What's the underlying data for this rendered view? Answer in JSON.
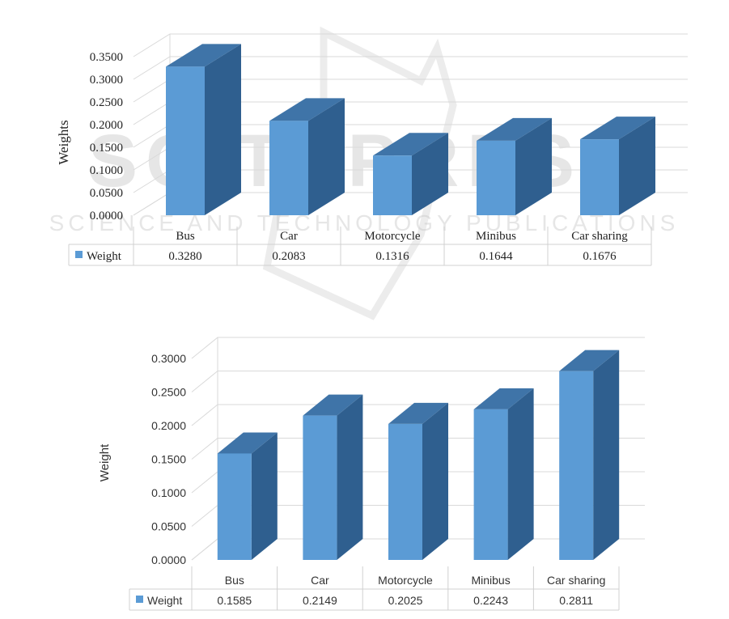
{
  "watermark": {
    "line1": "SCITEPRESS",
    "line2": "SCIENCE AND TECHNOLOGY PUBLICATIONS"
  },
  "chart_data": [
    {
      "type": "bar",
      "style": "3d-column",
      "ylabel": "Weights",
      "ylim": [
        0,
        0.35
      ],
      "yticks": [
        "0.0000",
        "0.0500",
        "0.1000",
        "0.1500",
        "0.2000",
        "0.2500",
        "0.3000",
        "0.3500"
      ],
      "categories": [
        "Bus",
        "Car",
        "Motorcycle",
        "Minibus",
        "Car sharing"
      ],
      "series": [
        {
          "name": "Weight",
          "values": [
            0.328,
            0.2083,
            0.1316,
            0.1644,
            0.1676
          ],
          "labels": [
            "0.3280",
            "0.2083",
            "0.1316",
            "0.1644",
            "0.1676"
          ]
        }
      ],
      "data_table": true,
      "grid": true,
      "colors": {
        "front": "#5b9bd5",
        "side": "#2f5f8f",
        "top": "#3f74a8"
      }
    },
    {
      "type": "bar",
      "style": "3d-column",
      "ylabel": "Weight",
      "ylim": [
        0,
        0.3
      ],
      "yticks": [
        "0.0000",
        "0.0500",
        "0.1000",
        "0.1500",
        "0.2000",
        "0.2500",
        "0.3000"
      ],
      "categories": [
        "Bus",
        "Car",
        "Motorcycle",
        "Minibus",
        "Car sharing"
      ],
      "series": [
        {
          "name": "Weight",
          "values": [
            0.1585,
            0.2149,
            0.2025,
            0.2243,
            0.2811
          ],
          "labels": [
            "0.1585",
            "0.2149",
            "0.2025",
            "0.2243",
            "0.2811"
          ]
        }
      ],
      "data_table": true,
      "grid": true,
      "colors": {
        "front": "#5b9bd5",
        "side": "#2f5f8f",
        "top": "#3f74a8"
      }
    }
  ]
}
